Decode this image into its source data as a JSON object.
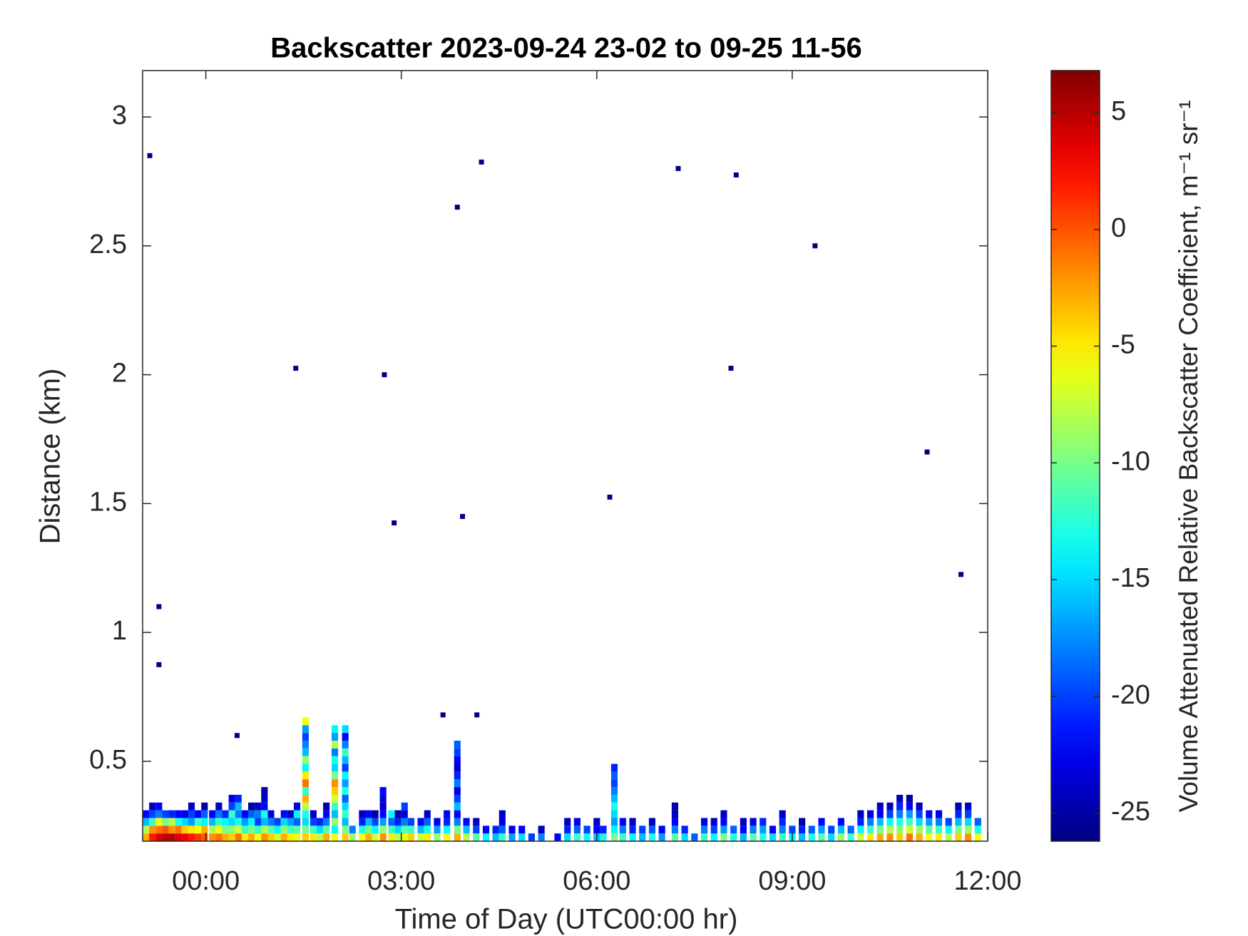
{
  "chart_data": {
    "type": "heatmap",
    "title": "Backscatter 2023-09-24 23-02 to 09-25 11-56",
    "xlabel": "Time of Day (UTC00:00 hr)",
    "ylabel": "Distance (km)",
    "colorbar_label": "Volume Attenuated Relative Backscatter Coefficient, m⁻¹ sr⁻¹",
    "colormap": "jet",
    "xlim": [
      -0.97,
      12
    ],
    "xticks": [
      {
        "value": 0,
        "label": "00:00"
      },
      {
        "value": 3,
        "label": "03:00"
      },
      {
        "value": 6,
        "label": "06:00"
      },
      {
        "value": 9,
        "label": "09:00"
      },
      {
        "value": 12,
        "label": "12:00"
      }
    ],
    "ylim": [
      0.19,
      3.18
    ],
    "yticks": [
      0.5,
      1,
      1.5,
      2,
      2.5,
      3
    ],
    "clim": [
      -26.2,
      6.8
    ],
    "cticks": [
      -25,
      -20,
      -15,
      -10,
      -5,
      0,
      5
    ],
    "rows": [
      0.205,
      0.235,
      0.265,
      0.295,
      0.325,
      0.355,
      0.385,
      0.415,
      0.445,
      0.475,
      0.505,
      0.535,
      0.565,
      0.595,
      0.625,
      0.655
    ],
    "columns": [
      {
        "x": -0.92,
        "values": [
          -3,
          -8,
          -16,
          -22
        ]
      },
      {
        "x": -0.82,
        "values": [
          2,
          -2,
          -12,
          -20,
          -24
        ]
      },
      {
        "x": -0.72,
        "values": [
          4,
          -1,
          -6,
          -18,
          -22
        ]
      },
      {
        "x": -0.62,
        "values": [
          5,
          0,
          -10,
          -20
        ]
      },
      {
        "x": -0.52,
        "values": [
          5,
          -2,
          -8,
          -21
        ]
      },
      {
        "x": -0.42,
        "values": [
          4,
          -1,
          -13,
          -22
        ]
      },
      {
        "x": -0.32,
        "values": [
          3,
          -4,
          -15,
          -23
        ]
      },
      {
        "x": -0.22,
        "values": [
          2,
          -5,
          -17,
          -20,
          -24
        ]
      },
      {
        "x": -0.12,
        "values": [
          1,
          -6,
          -12,
          -22
        ]
      },
      {
        "x": -0.02,
        "values": [
          0,
          -3,
          -14,
          -19,
          -25
        ]
      },
      {
        "x": 0.1,
        "values": [
          -2,
          -8,
          -16,
          -22
        ]
      },
      {
        "x": 0.2,
        "values": [
          -1,
          -6,
          -12,
          -18,
          -24
        ]
      },
      {
        "x": 0.3,
        "values": [
          -3,
          -10,
          -14,
          -21
        ]
      },
      {
        "x": 0.4,
        "values": [
          -4,
          -9,
          -15,
          -12,
          -20,
          -23
        ]
      },
      {
        "x": 0.5,
        "values": [
          -1,
          -7,
          -13,
          -18,
          -16,
          -21
        ]
      },
      {
        "x": 0.6,
        "values": [
          -5,
          -12,
          -17,
          -22
        ]
      },
      {
        "x": 0.7,
        "values": [
          -3,
          -10,
          -14,
          -19,
          -25
        ]
      },
      {
        "x": 0.8,
        "values": [
          -6,
          -12,
          -20,
          -18,
          -24
        ]
      },
      {
        "x": 0.9,
        "values": [
          -2,
          -8,
          -16,
          -13,
          -22,
          -24,
          -25
        ]
      },
      {
        "x": 1.0,
        "values": [
          -4,
          -11,
          -18,
          -23
        ]
      },
      {
        "x": 1.1,
        "values": [
          -7,
          -14,
          -20
        ]
      },
      {
        "x": 1.2,
        "values": [
          -3,
          -9,
          -15,
          -22
        ]
      },
      {
        "x": 1.3,
        "values": [
          -5,
          -12,
          -17,
          -24
        ]
      },
      {
        "x": 1.4,
        "values": [
          -6,
          -11,
          -19,
          -14,
          -23
        ]
      },
      {
        "x": 1.53,
        "values": [
          -4,
          -10,
          -15,
          -13,
          -8,
          -3,
          -12,
          -1,
          -5,
          -14,
          -9,
          -16,
          -18,
          -20,
          -17,
          -6
        ]
      },
      {
        "x": 1.65,
        "values": [
          -5,
          -12,
          -20,
          -24
        ]
      },
      {
        "x": 1.75,
        "values": [
          -8,
          -15,
          -21
        ]
      },
      {
        "x": 1.85,
        "values": [
          -3,
          -11,
          -18,
          -22,
          -25
        ]
      },
      {
        "x": 1.98,
        "values": [
          -6,
          -14,
          -9,
          -16,
          -12,
          -7,
          -4,
          -2,
          -10,
          -15,
          -13,
          -18,
          -8,
          -17,
          -14
        ]
      },
      {
        "x": 2.14,
        "values": [
          -4,
          -10,
          -16,
          -12,
          -15,
          -19,
          -13,
          -17,
          -14,
          -20,
          -16,
          -12,
          -18,
          -22,
          -15
        ]
      },
      {
        "x": 2.25,
        "values": [
          -9,
          -18
        ]
      },
      {
        "x": 2.4,
        "values": [
          -6,
          -13,
          -21,
          -24
        ]
      },
      {
        "x": 2.5,
        "values": [
          -3,
          -10,
          -16,
          -22
        ]
      },
      {
        "x": 2.6,
        "values": [
          -7,
          -14,
          -20,
          -25
        ]
      },
      {
        "x": 2.72,
        "values": [
          -2,
          -9,
          -17,
          -22,
          -24,
          -23,
          -22
        ]
      },
      {
        "x": 2.85,
        "values": [
          -5,
          -12,
          -19,
          -14
        ]
      },
      {
        "x": 2.95,
        "values": [
          -8,
          -15,
          -21,
          -25
        ]
      },
      {
        "x": 3.05,
        "values": [
          -6,
          -11,
          -18,
          -23,
          -20
        ]
      },
      {
        "x": 3.15,
        "values": [
          -4,
          -12,
          -20
        ]
      },
      {
        "x": 3.3,
        "values": [
          -7,
          -16,
          -22
        ]
      },
      {
        "x": 3.4,
        "values": [
          -5,
          -13,
          -19,
          -24
        ]
      },
      {
        "x": 3.55,
        "values": [
          -9,
          -17,
          -23
        ]
      },
      {
        "x": 3.7,
        "values": [
          -6,
          -14,
          -21,
          -22
        ]
      },
      {
        "x": 3.86,
        "values": [
          -3,
          -10,
          -18,
          -22,
          -16,
          -20,
          -23,
          -18,
          -21,
          -24,
          -22,
          -20,
          -19
        ]
      },
      {
        "x": 4.0,
        "values": [
          -8,
          -16,
          -22
        ]
      },
      {
        "x": 4.15,
        "values": [
          -11,
          -20,
          -24
        ]
      },
      {
        "x": 4.3,
        "values": [
          -14,
          -22
        ]
      },
      {
        "x": 4.45,
        "values": [
          -16,
          -21
        ]
      },
      {
        "x": 4.55,
        "values": [
          -12,
          -19,
          -23,
          -24
        ]
      },
      {
        "x": 4.7,
        "values": [
          -17,
          -23
        ]
      },
      {
        "x": 4.85,
        "values": [
          -15,
          -22
        ]
      },
      {
        "x": 5.0,
        "values": [
          -20
        ]
      },
      {
        "x": 5.15,
        "values": [
          -18,
          -24
        ]
      },
      {
        "x": 5.4,
        "values": [
          -22
        ]
      },
      {
        "x": 5.55,
        "values": [
          -15,
          -21,
          -24
        ]
      },
      {
        "x": 5.7,
        "values": [
          -12,
          -19,
          -23
        ]
      },
      {
        "x": 5.85,
        "values": [
          -14,
          -20
        ]
      },
      {
        "x": 6.0,
        "values": [
          -16,
          -22,
          -24
        ]
      },
      {
        "x": 6.1,
        "values": [
          -13,
          -21
        ]
      },
      {
        "x": 6.27,
        "values": [
          -10,
          -14,
          -17,
          -15,
          -13,
          -16,
          -18,
          -20,
          -19,
          -21
        ]
      },
      {
        "x": 6.4,
        "values": [
          -12,
          -18,
          -22
        ]
      },
      {
        "x": 6.55,
        "values": [
          -14,
          -21,
          -24
        ]
      },
      {
        "x": 6.7,
        "values": [
          -16,
          -20
        ]
      },
      {
        "x": 6.85,
        "values": [
          -13,
          -19,
          -24
        ]
      },
      {
        "x": 7.0,
        "values": [
          -17,
          -22
        ]
      },
      {
        "x": 7.2,
        "values": [
          -11,
          -18,
          -22,
          -24,
          -25
        ]
      },
      {
        "x": 7.35,
        "values": [
          -15,
          -21
        ]
      },
      {
        "x": 7.5,
        "values": [
          -19
        ]
      },
      {
        "x": 7.65,
        "values": [
          -12,
          -18,
          -23
        ]
      },
      {
        "x": 7.8,
        "values": [
          -14,
          -20,
          -24
        ]
      },
      {
        "x": 7.95,
        "values": [
          -10,
          -17,
          -22,
          -24
        ]
      },
      {
        "x": 8.1,
        "values": [
          -13,
          -19
        ]
      },
      {
        "x": 8.25,
        "values": [
          -16,
          -22,
          -24
        ]
      },
      {
        "x": 8.4,
        "values": [
          -11,
          -18,
          -23
        ]
      },
      {
        "x": 8.55,
        "values": [
          -13,
          -17,
          -21
        ]
      },
      {
        "x": 8.7,
        "values": [
          -15,
          -22
        ]
      },
      {
        "x": 8.85,
        "values": [
          -12,
          -18,
          -21,
          -24
        ]
      },
      {
        "x": 9.0,
        "values": [
          -14,
          -20
        ]
      },
      {
        "x": 9.15,
        "values": [
          -16,
          -21,
          -25
        ]
      },
      {
        "x": 9.3,
        "values": [
          -13,
          -19
        ]
      },
      {
        "x": 9.45,
        "values": [
          -11,
          -17,
          -22
        ]
      },
      {
        "x": 9.6,
        "values": [
          -15,
          -20
        ]
      },
      {
        "x": 9.75,
        "values": [
          -9,
          -16,
          -22
        ]
      },
      {
        "x": 9.9,
        "values": [
          -12,
          -19
        ]
      },
      {
        "x": 10.05,
        "values": [
          -7,
          -14,
          -21,
          -24
        ]
      },
      {
        "x": 10.2,
        "values": [
          -5,
          -12,
          -18,
          -23
        ]
      },
      {
        "x": 10.35,
        "values": [
          -3,
          -10,
          -16,
          -22,
          -24
        ]
      },
      {
        "x": 10.5,
        "values": [
          -2,
          -8,
          -14,
          -20,
          -24
        ]
      },
      {
        "x": 10.65,
        "values": [
          -4,
          -9,
          -13,
          -18,
          -21,
          -24
        ]
      },
      {
        "x": 10.8,
        "values": [
          -1,
          -7,
          -12,
          -17,
          -22,
          -25
        ]
      },
      {
        "x": 10.95,
        "values": [
          -3,
          -9,
          -15,
          -20,
          -24
        ]
      },
      {
        "x": 11.1,
        "values": [
          -6,
          -11,
          -17,
          -22
        ]
      },
      {
        "x": 11.25,
        "values": [
          -5,
          -12,
          -18,
          -23
        ]
      },
      {
        "x": 11.4,
        "values": [
          -8,
          -14,
          -20
        ]
      },
      {
        "x": 11.55,
        "values": [
          -4,
          -10,
          -16,
          -21,
          -24
        ]
      },
      {
        "x": 11.7,
        "values": [
          -2,
          -9,
          -15,
          -20,
          -24
        ]
      },
      {
        "x": 11.85,
        "values": [
          -6,
          -13,
          -19
        ]
      }
    ],
    "points": {
      "x": [
        -0.86,
        -0.72,
        -0.72,
        0.48,
        1.38,
        2.74,
        2.89,
        3.86,
        3.94,
        4.23,
        3.64,
        4.16,
        6.2,
        7.25,
        8.14,
        8.06,
        9.35,
        11.07,
        11.59
      ],
      "y": [
        2.85,
        1.1,
        0.875,
        0.6,
        2.025,
        2.0,
        1.425,
        2.65,
        1.45,
        2.825,
        0.68,
        0.68,
        1.525,
        2.8,
        2.775,
        2.025,
        2.5,
        1.7,
        1.225
      ],
      "values": [
        -26,
        -26,
        -26,
        -26,
        -26,
        -26,
        -26,
        -26,
        -26,
        -26,
        -26,
        -26,
        -26,
        -26,
        -26,
        -26,
        -26,
        -26,
        -26
      ]
    }
  }
}
